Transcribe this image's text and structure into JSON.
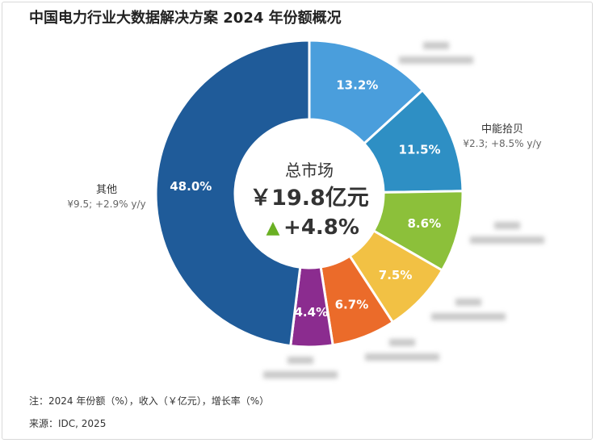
{
  "title": "中国电力行业大数据解决方案 2024 年份额概况",
  "center": {
    "label": "总市场",
    "value": "￥19.8亿元",
    "growth_arrow": "▲",
    "growth": "+4.8%"
  },
  "footnotes": {
    "note": "注：2024 年份额（%），收入（￥亿元），增长率（%）",
    "source": "来源：IDC, 2025"
  },
  "chart_data": {
    "type": "pie",
    "style": "donut",
    "slices": [
      {
        "name": "",
        "value": 13.2,
        "label": "13.2%",
        "detail": "",
        "color": "#4a9edc",
        "blurred": true
      },
      {
        "name": "中能拾贝",
        "value": 11.5,
        "label": "11.5%",
        "detail": "¥2.3; +8.5% y/y",
        "color": "#2e8fc4",
        "blurred": false
      },
      {
        "name": "",
        "value": 8.6,
        "label": "8.6%",
        "detail": "",
        "color": "#8cc03a",
        "blurred": true
      },
      {
        "name": "",
        "value": 7.5,
        "label": "7.5%",
        "detail": "",
        "color": "#f2c144",
        "blurred": true
      },
      {
        "name": "",
        "value": 6.7,
        "label": "6.7%",
        "detail": "",
        "color": "#eb6b2a",
        "blurred": true
      },
      {
        "name": "",
        "value": 4.4,
        "label": "4.4%",
        "detail": "",
        "color": "#8b2c8f",
        "blurred": true
      },
      {
        "name": "其他",
        "value": 48.0,
        "label": "48.0%",
        "detail": "¥9.5; +2.9% y/y",
        "color": "#1f5b99",
        "blurred": false
      }
    ],
    "growth_arrow_color": "#6ab023"
  }
}
